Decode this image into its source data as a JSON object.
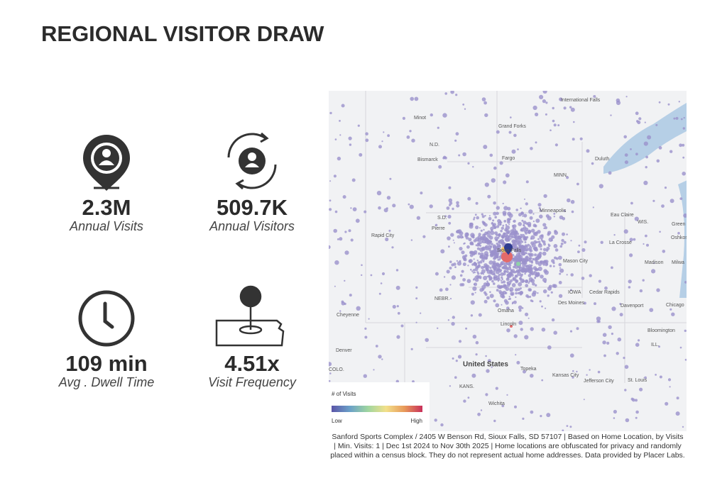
{
  "header": {
    "title": "REGIONAL VISITOR DRAW"
  },
  "stats": [
    {
      "value": "2.3M",
      "label": "Annual Visits"
    },
    {
      "value": "509.7K",
      "label": "Annual Visitors"
    },
    {
      "value": "109 min",
      "label": "Avg . Dwell Time"
    },
    {
      "value": "4.51x",
      "label": "Visit Frequency"
    }
  ],
  "map": {
    "labels": [
      "International Falls",
      "Minot",
      "Grand Forks",
      "N.D.",
      "Bismarck",
      "Fargo",
      "Duluth",
      "MINN.",
      "Minneapolis",
      "Eau Claire",
      "WIS.",
      "Green",
      "S.D.",
      "Pierre",
      "Rapid City",
      "Oshkosh",
      "Sioux Falls",
      "La Crosse",
      "Madison",
      "Milwa",
      "Mason City",
      "IOWA",
      "Cedar Rapids",
      "NEBR.",
      "Des Moines",
      "Davenport",
      "Chicago",
      "Cheyenne",
      "Omaha",
      "Lincoln",
      "Bloomington",
      "Denver",
      "ILL.",
      "COLO.",
      "United States",
      "Topeka",
      "Kansas City",
      "KANS.",
      "Jefferson City",
      "St. Louis",
      "Wichita"
    ],
    "legend": {
      "title": "# of Visits",
      "low": "Low",
      "high": "High"
    }
  },
  "caption": [
    "Sanford Sports Complex / 2405 W Benson Rd, Sioux Falls, SD 57107 | Based on Home Location, by Visits",
    "| Min. Visits: 1 | Dec 1st 2024 to Nov 30th 2025 | Home locations are obfuscated for privacy and randomly",
    "placed within a census block. They do not represent actual home addresses. Data provided by Placer Labs."
  ]
}
